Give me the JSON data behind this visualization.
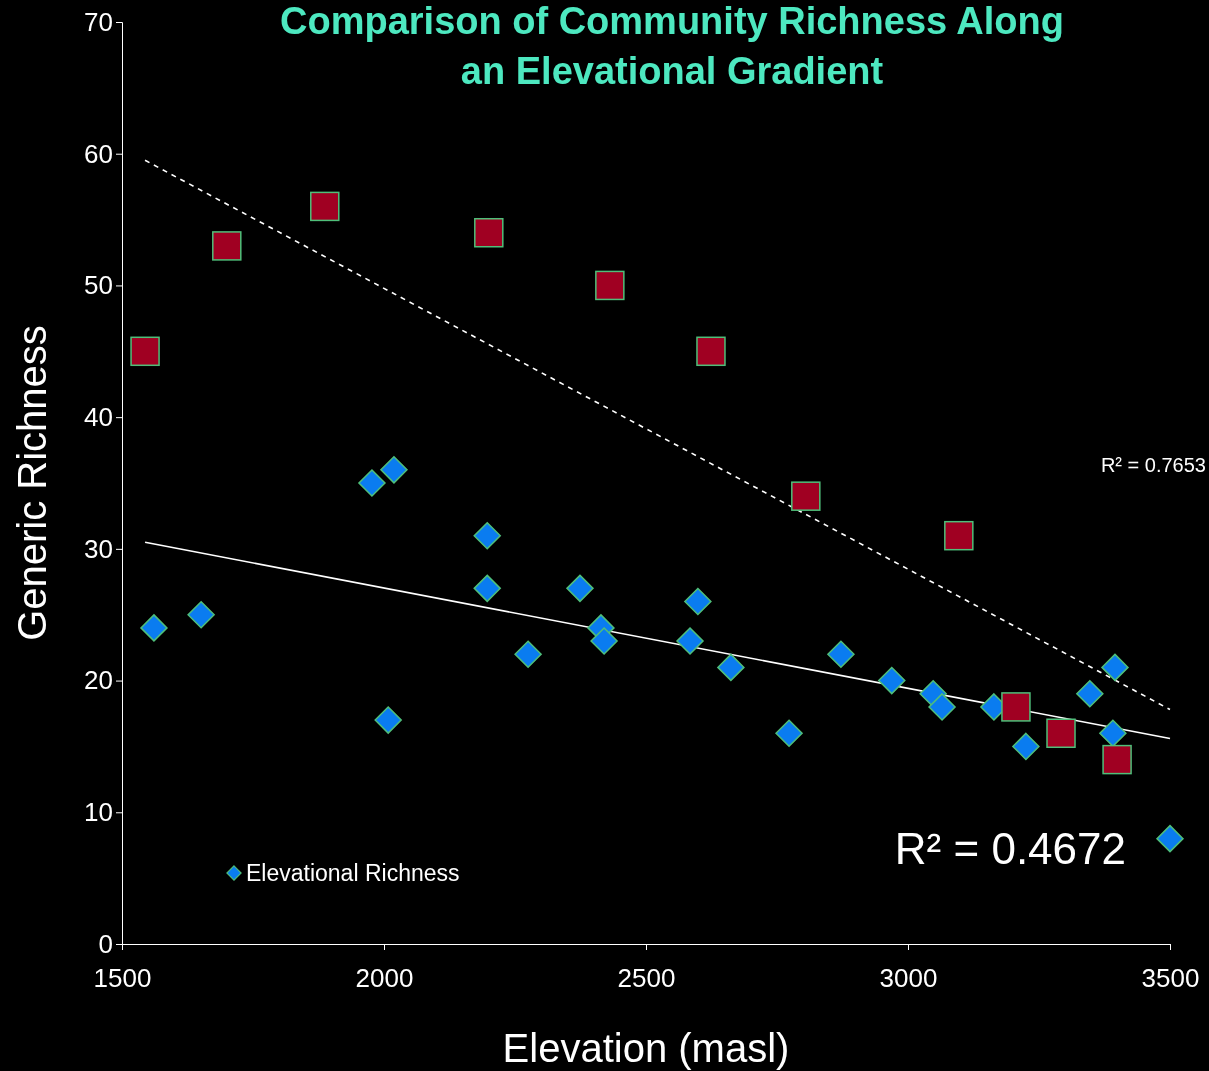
{
  "chart_data": {
    "type": "scatter",
    "title": "Comparison of Community Richness Along an Elevational Gradient",
    "xlabel": "Elevation (masl)",
    "ylabel": "Generic Richness",
    "xlim": [
      1500,
      3500
    ],
    "xticks": [
      1500,
      2000,
      2500,
      3000,
      3500
    ],
    "ylim": [
      0,
      70
    ],
    "yticks": [
      0,
      10,
      20,
      30,
      40,
      50,
      60,
      70
    ],
    "grid": false,
    "legend": "bottom left",
    "annotations": [
      "R² = 0.7653",
      "R² = 0.4672"
    ],
    "series": [
      {
        "type": "line",
        "color": "#ffffff",
        "line_style": "dashed",
        "x": [
          1544,
          3500
        ],
        "values": [
          59.5,
          17.8
        ]
      },
      {
        "type": "line",
        "color": "#ffffff",
        "line_style": "solid",
        "x": [
          1544,
          3500
        ],
        "values": [
          30.5,
          15.6
        ]
      },
      {
        "name": "Elevational Richness",
        "color": "#0a7cf0",
        "marker": "diamond",
        "x": [
          1561,
          1651,
          1977,
          2019,
          2008,
          2197,
          2197,
          2275,
          2374,
          2414,
          2420,
          2584,
          2599,
          2662,
          2773,
          2872,
          2969,
          3048,
          3065,
          3164,
          3225,
          3347,
          3395,
          3391,
          3500
        ],
        "values": [
          24,
          25,
          35,
          36,
          17,
          31,
          27,
          22,
          27,
          24,
          23,
          23,
          26,
          21,
          16,
          22,
          20,
          19,
          18,
          18,
          15,
          19,
          21,
          16,
          8
        ]
      },
      {
        "color": "#a00022",
        "marker": "square",
        "x": [
          1544,
          1700,
          1887,
          2200,
          2431,
          2624,
          2805,
          3097,
          3206,
          3292,
          3399
        ],
        "values": [
          45,
          53,
          56,
          54,
          50,
          45,
          34,
          31,
          18,
          16,
          14
        ]
      }
    ]
  }
}
